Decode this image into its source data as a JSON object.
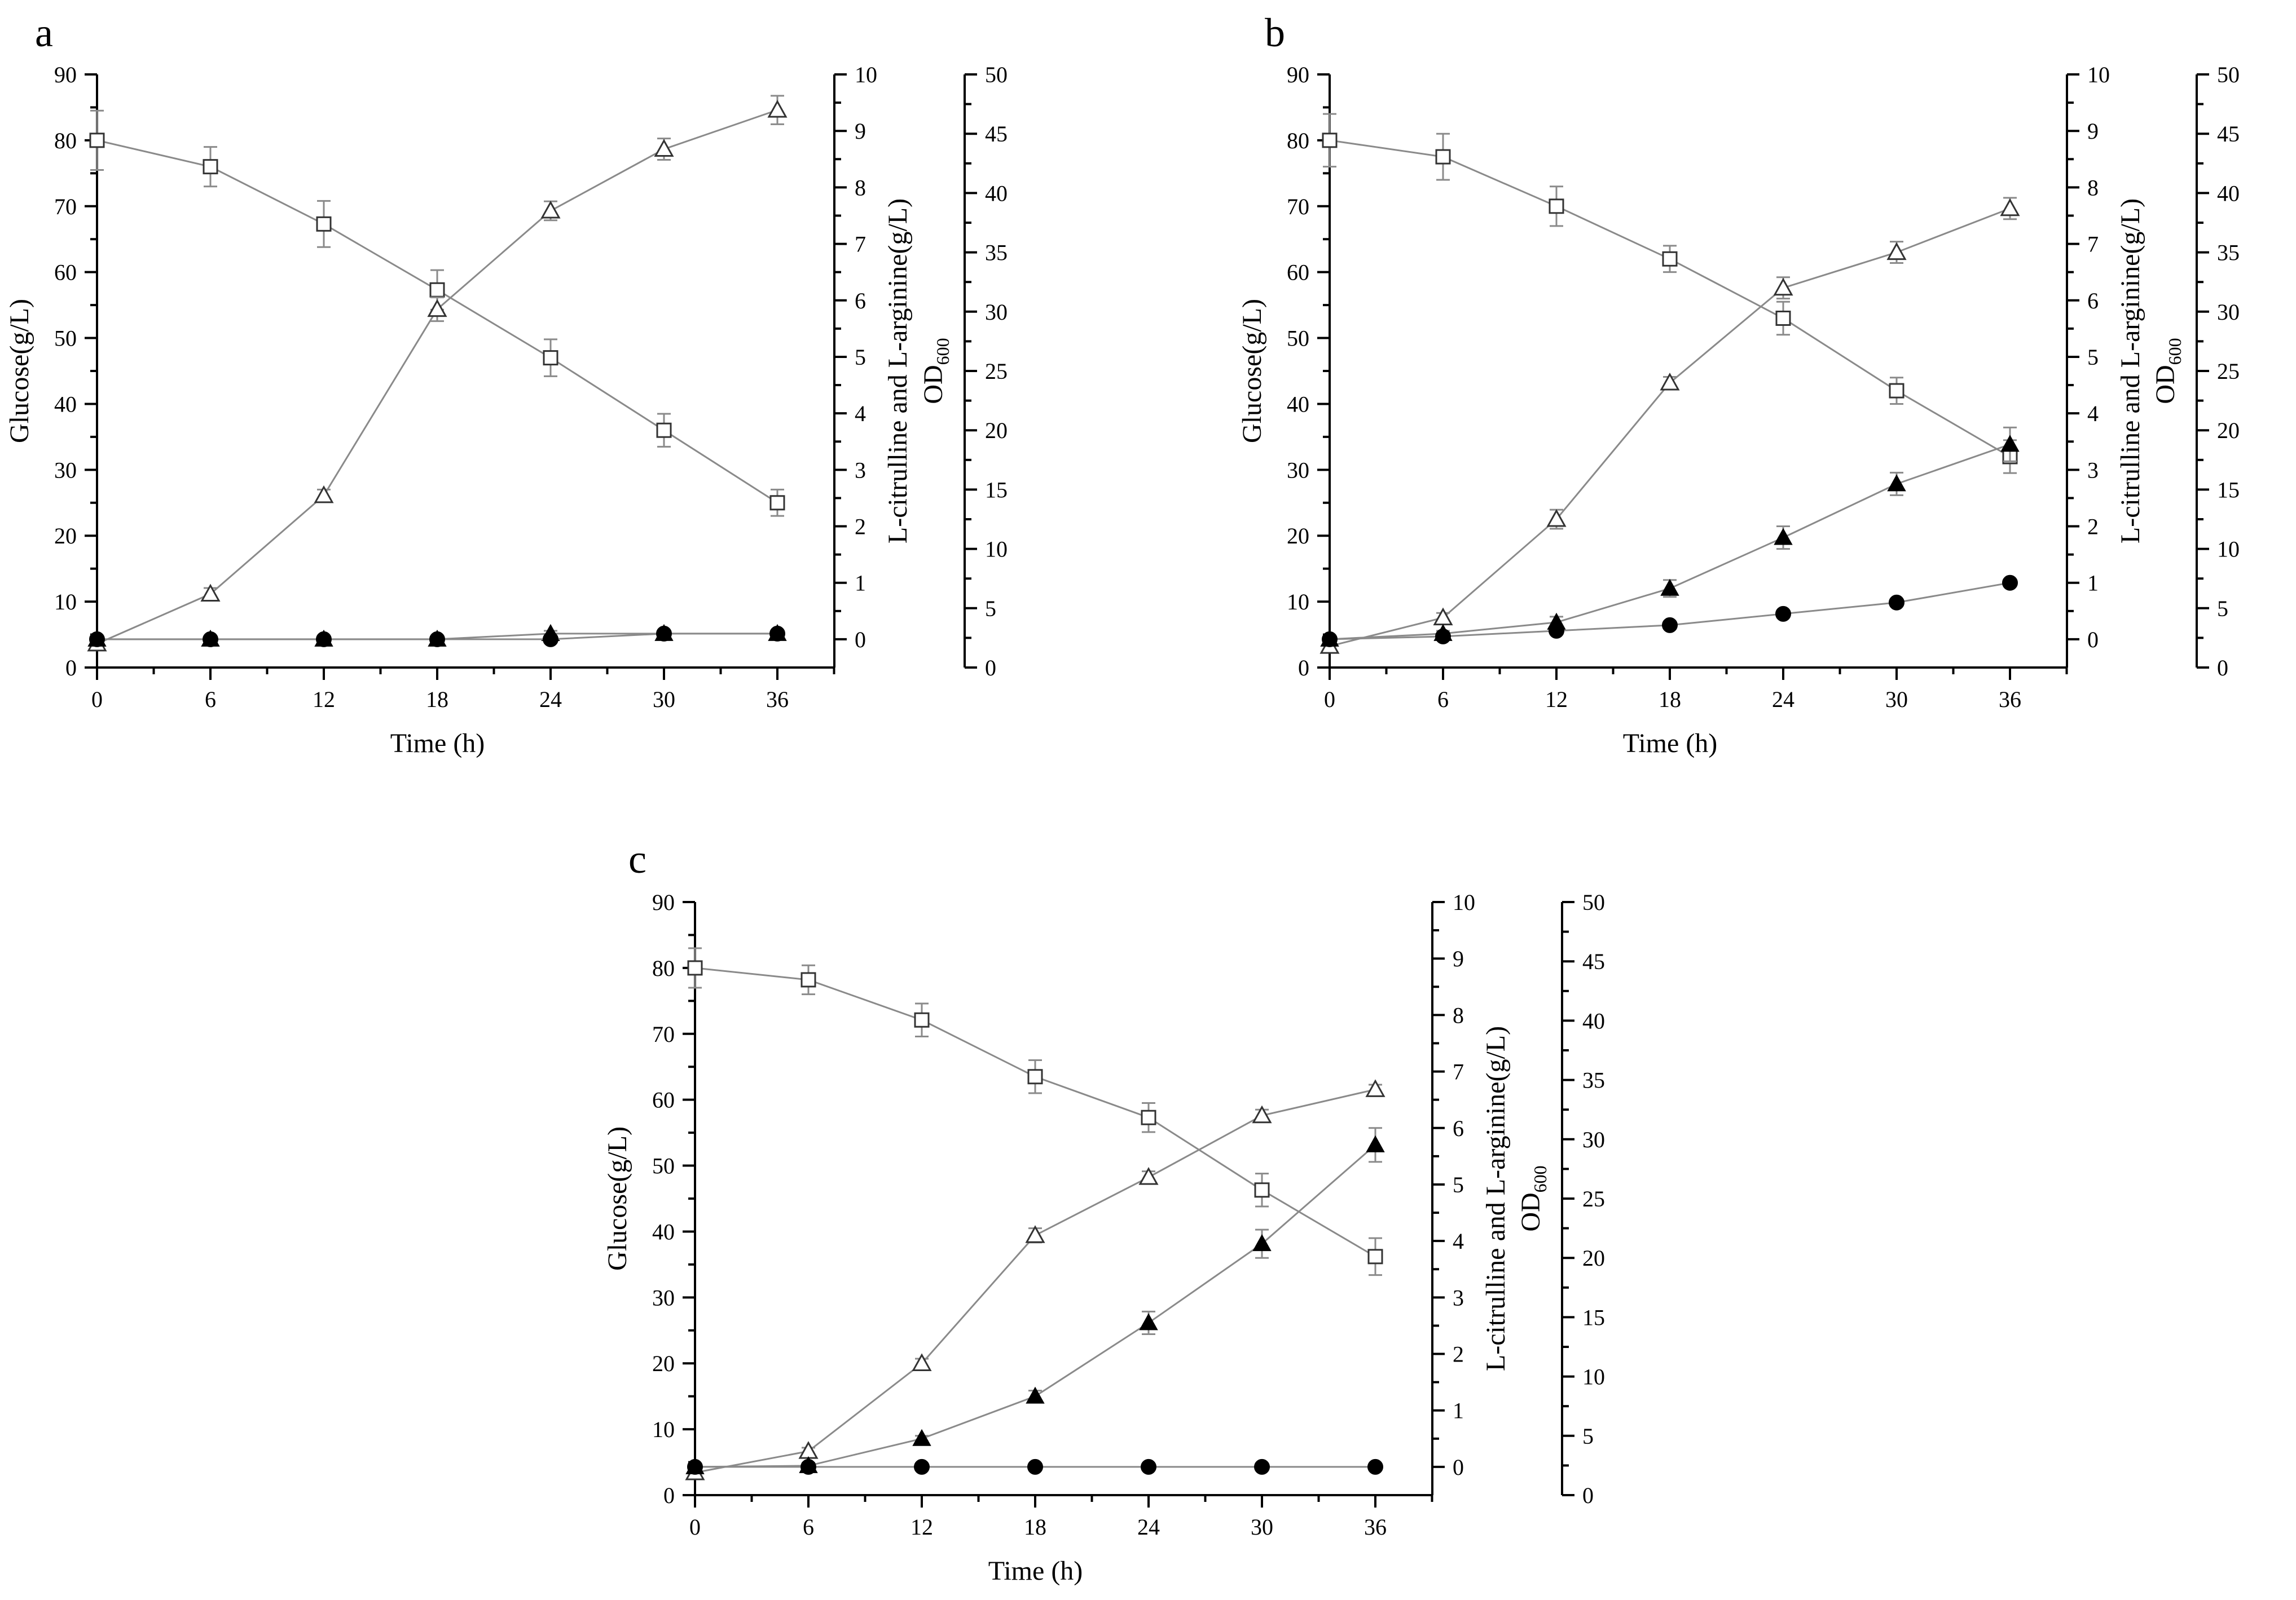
{
  "chart_data": [
    {
      "type": "line",
      "panel_label": "a",
      "xlabel": "Time (h)",
      "ylabel_left": "Glucose(g/L)",
      "ylabel_right1": "L-citrulline and L-arginine(g/L)",
      "ylabel_right2": "OD",
      "ylabel_right2_sub": "600",
      "xlim": [
        0,
        36
      ],
      "x_ticks": [
        0,
        6,
        12,
        18,
        24,
        30,
        36
      ],
      "ylim_left": [
        0,
        90
      ],
      "y_ticks_left": [
        0,
        10,
        20,
        30,
        40,
        50,
        60,
        70,
        80,
        90
      ],
      "ylim_right1": [
        -0.5,
        10
      ],
      "y_ticks_right1": [
        0,
        1,
        2,
        3,
        4,
        5,
        6,
        7,
        8,
        9,
        10
      ],
      "ylim_right2": [
        0,
        50
      ],
      "y_ticks_right2": [
        0,
        5,
        10,
        15,
        20,
        25,
        30,
        35,
        40,
        45,
        50
      ],
      "x": [
        0,
        6,
        12,
        18,
        24,
        30,
        36
      ],
      "series": [
        {
          "name": "Glucose",
          "axis": "left",
          "marker": "square-open",
          "values": [
            80,
            76,
            67.3,
            57.3,
            47,
            36,
            25
          ],
          "errors": [
            4.5,
            3,
            3.5,
            3,
            2.8,
            2.5,
            2
          ]
        },
        {
          "name": "OD600",
          "axis": "right2",
          "marker": "triangle-open",
          "values": [
            2,
            6.2,
            14.5,
            30.2,
            38.5,
            43.7,
            47
          ],
          "errors": [
            0.3,
            0.5,
            0.5,
            1,
            0.8,
            0.9,
            1.2
          ]
        },
        {
          "name": "L-arginine",
          "axis": "right1",
          "marker": "triangle-filled",
          "values": [
            0,
            0,
            0,
            0,
            0.1,
            0.1,
            0.1
          ],
          "errors": [
            0.05,
            0.05,
            0.05,
            0.05,
            0.05,
            0.05,
            0.05
          ]
        },
        {
          "name": "L-citrulline",
          "axis": "right1",
          "marker": "circle-filled",
          "values": [
            0,
            0,
            0,
            0,
            0,
            0.1,
            0.1
          ],
          "errors": [
            0.05,
            0.05,
            0.05,
            0.05,
            0.05,
            0.05,
            0.05
          ]
        }
      ]
    },
    {
      "type": "line",
      "panel_label": "b",
      "xlabel": "Time (h)",
      "ylabel_left": "Glucose(g/L)",
      "ylabel_right1": "L-citrulline and L-arginine(g/L)",
      "ylabel_right2": "OD",
      "ylabel_right2_sub": "600",
      "xlim": [
        0,
        36
      ],
      "x_ticks": [
        0,
        6,
        12,
        18,
        24,
        30,
        36
      ],
      "ylim_left": [
        0,
        90
      ],
      "y_ticks_left": [
        0,
        10,
        20,
        30,
        40,
        50,
        60,
        70,
        80,
        90
      ],
      "ylim_right1": [
        -0.5,
        10
      ],
      "y_ticks_right1": [
        0,
        1,
        2,
        3,
        4,
        5,
        6,
        7,
        8,
        9,
        10
      ],
      "ylim_right2": [
        0,
        50
      ],
      "y_ticks_right2": [
        0,
        5,
        10,
        15,
        20,
        25,
        30,
        35,
        40,
        45,
        50
      ],
      "x": [
        0,
        6,
        12,
        18,
        24,
        30,
        36
      ],
      "series": [
        {
          "name": "Glucose",
          "axis": "left",
          "marker": "square-open",
          "values": [
            80,
            77.5,
            70,
            62,
            53,
            42,
            32
          ],
          "errors": [
            4,
            3.5,
            3,
            2,
            2.5,
            2,
            2.5
          ]
        },
        {
          "name": "OD600",
          "axis": "right2",
          "marker": "triangle-open",
          "values": [
            1.8,
            4.2,
            12.5,
            24,
            32,
            35,
            38.7
          ],
          "errors": [
            0.3,
            0.4,
            0.8,
            0.5,
            0.9,
            0.9,
            0.9
          ]
        },
        {
          "name": "L-arginine",
          "axis": "right1",
          "marker": "triangle-filled",
          "values": [
            0,
            0.1,
            0.3,
            0.9,
            1.8,
            2.75,
            3.45
          ],
          "errors": [
            0.05,
            0.05,
            0.1,
            0.15,
            0.2,
            0.2,
            0.3
          ]
        },
        {
          "name": "L-citrulline",
          "axis": "right1",
          "marker": "circle-filled",
          "values": [
            0,
            0.05,
            0.15,
            0.25,
            0.45,
            0.65,
            1.0
          ],
          "errors": [
            0.05,
            0.05,
            0.05,
            0.05,
            0.05,
            0.05,
            0.05
          ]
        }
      ]
    },
    {
      "type": "line",
      "panel_label": "c",
      "xlabel": "Time (h)",
      "ylabel_left": "Glucose(g/L)",
      "ylabel_right1": "L-citrulline and L-arginine(g/L)",
      "ylabel_right2": "OD",
      "ylabel_right2_sub": "600",
      "xlim": [
        0,
        36
      ],
      "x_ticks": [
        0,
        6,
        12,
        18,
        24,
        30,
        36
      ],
      "ylim_left": [
        0,
        90
      ],
      "y_ticks_left": [
        0,
        10,
        20,
        30,
        40,
        50,
        60,
        70,
        80,
        90
      ],
      "ylim_right1": [
        -0.5,
        10
      ],
      "y_ticks_right1": [
        0,
        1,
        2,
        3,
        4,
        5,
        6,
        7,
        8,
        9,
        10
      ],
      "ylim_right2": [
        0,
        50
      ],
      "y_ticks_right2": [
        0,
        5,
        10,
        15,
        20,
        25,
        30,
        35,
        40,
        45,
        50
      ],
      "x": [
        0,
        6,
        12,
        18,
        24,
        30,
        36
      ],
      "series": [
        {
          "name": "Glucose",
          "axis": "left",
          "marker": "square-open",
          "values": [
            80,
            78.2,
            72.1,
            63.5,
            57.3,
            46.3,
            36.2
          ],
          "errors": [
            3,
            2.2,
            2.5,
            2.5,
            2.2,
            2.5,
            2.8
          ]
        },
        {
          "name": "OD600",
          "axis": "right2",
          "marker": "triangle-open",
          "values": [
            1.9,
            3.7,
            11.1,
            21.9,
            26.8,
            32,
            34.2
          ],
          "errors": [
            0.3,
            0.3,
            0.4,
            0.6,
            0.5,
            0.5,
            0.4
          ]
        },
        {
          "name": "L-arginine",
          "axis": "right1",
          "marker": "triangle-filled",
          "values": [
            0,
            0.02,
            0.5,
            1.25,
            2.55,
            3.95,
            5.7
          ],
          "errors": [
            0.05,
            0.05,
            0.05,
            0.1,
            0.2,
            0.25,
            0.3
          ]
        },
        {
          "name": "L-citrulline",
          "axis": "right1",
          "marker": "circle-filled",
          "values": [
            0,
            0,
            0,
            0,
            0,
            0,
            0
          ],
          "errors": [
            0,
            0,
            0,
            0,
            0,
            0,
            0
          ]
        }
      ]
    }
  ]
}
